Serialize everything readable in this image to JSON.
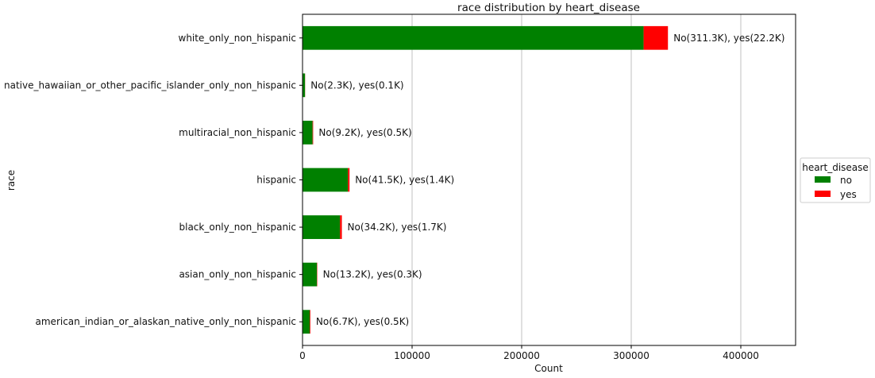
{
  "chart_data": {
    "type": "bar",
    "orientation": "horizontal",
    "stacked": true,
    "title": "race distribution by heart_disease",
    "xlabel": "Count",
    "ylabel": "race",
    "xlim": [
      0,
      450000
    ],
    "xticks": [
      0,
      100000,
      200000,
      300000,
      400000
    ],
    "grid": "x-major",
    "categories": [
      "american_indian_or_alaskan_native_only_non_hispanic",
      "asian_only_non_hispanic",
      "black_only_non_hispanic",
      "hispanic",
      "multiracial_non_hispanic",
      "native_hawaiian_or_other_pacific_islander_only_non_hispanic",
      "white_only_non_hispanic"
    ],
    "series": [
      {
        "name": "no",
        "color": "#008000",
        "values": [
          6700,
          13200,
          34200,
          41500,
          9200,
          2300,
          311300
        ]
      },
      {
        "name": "yes",
        "color": "#ff0000",
        "values": [
          500,
          300,
          1700,
          1400,
          500,
          100,
          22200
        ]
      }
    ],
    "data_labels": [
      "No(6.7K), yes(0.5K)",
      "No(13.2K), yes(0.3K)",
      "No(34.2K), yes(1.7K)",
      "No(41.5K), yes(1.4K)",
      "No(9.2K), yes(0.5K)",
      "No(2.3K), yes(0.1K)",
      "No(311.3K), yes(22.2K)"
    ],
    "legend": {
      "title": "heart_disease",
      "placement": "outside-right"
    }
  }
}
